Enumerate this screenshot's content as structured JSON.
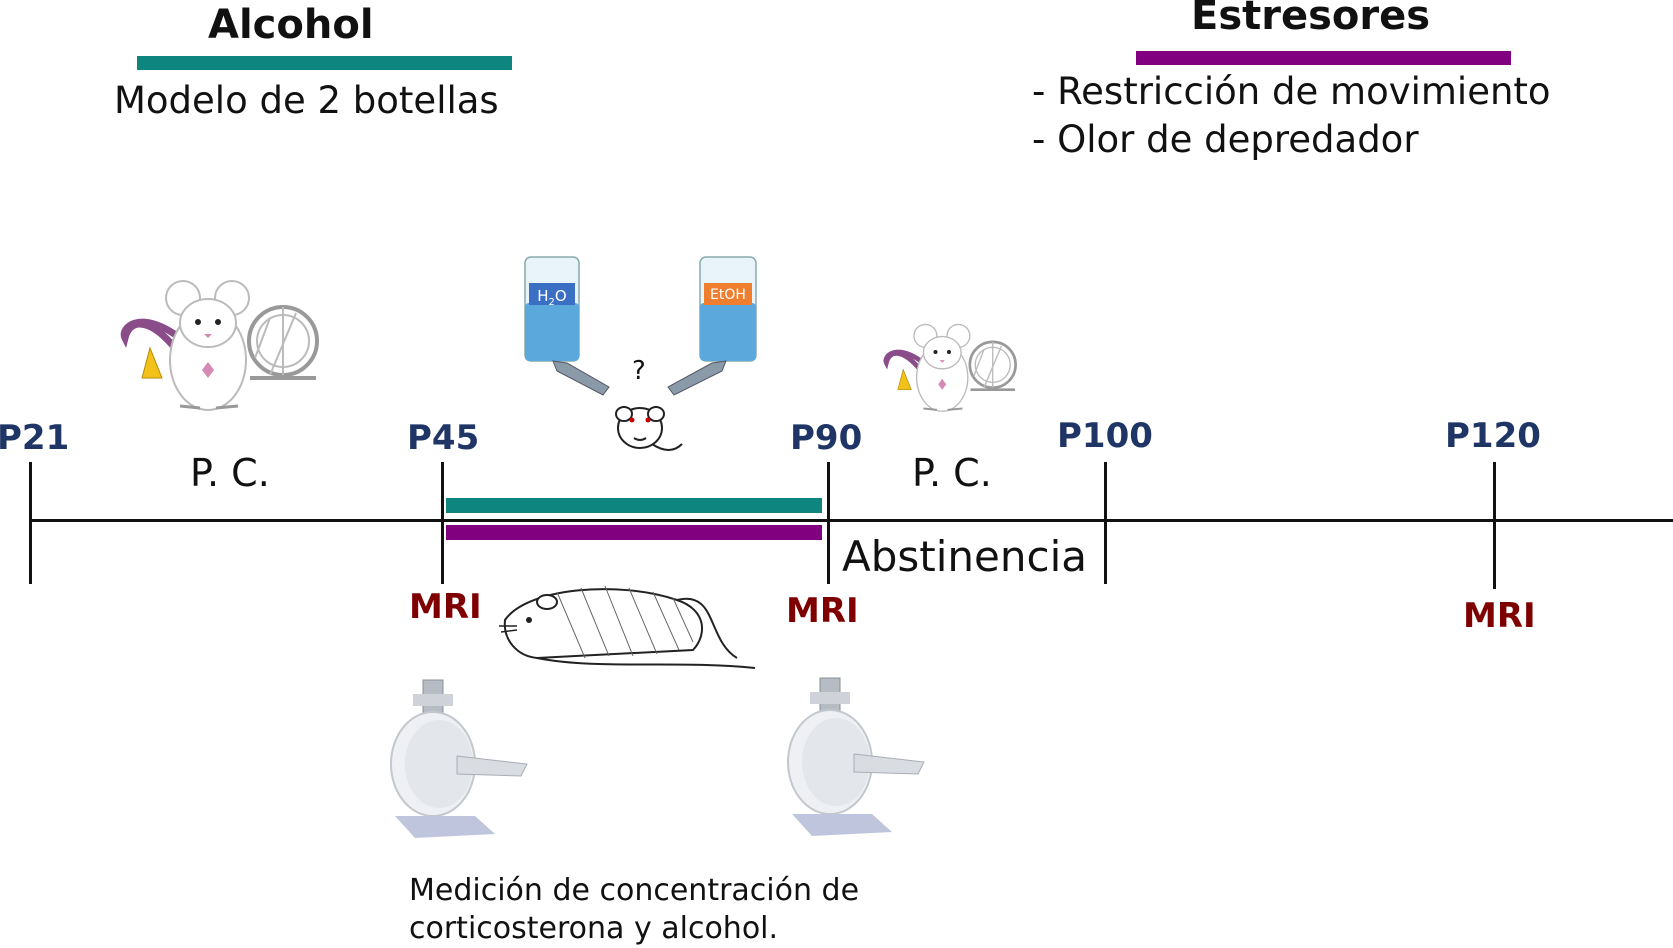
{
  "legend": {
    "alcohol": {
      "title": "Alcohol",
      "description": "Modelo de 2 botellas",
      "color": "#0e857e"
    },
    "stressors": {
      "title": "Estresores",
      "items": [
        "- Restricción de movimiento",
        "- Olor de depredador"
      ],
      "color": "#800080"
    }
  },
  "timeline": {
    "ticks": [
      "P21",
      "P45",
      "P90",
      "P100",
      "P120"
    ],
    "tick_color": "#1f3566",
    "mri_label": "MRI",
    "mri_color": "#7f0000",
    "phases": {
      "pc_first": "P. C.",
      "pc_second": "P. C.",
      "withdrawal": "Abstinencia"
    }
  },
  "bottles": {
    "left_label_main": "H",
    "left_label_sub": "2",
    "left_label_tail": "O",
    "right_label": "EtOH",
    "question": "?"
  },
  "footnote": {
    "line1": "Medición de concentración de",
    "line2": "corticosterona y alcohol."
  },
  "icons": [
    "mouse-with-wheel-icon",
    "bottle-icon",
    "mouse-face-icon",
    "restrained-mouse-icon",
    "mri-scanner-icon"
  ]
}
